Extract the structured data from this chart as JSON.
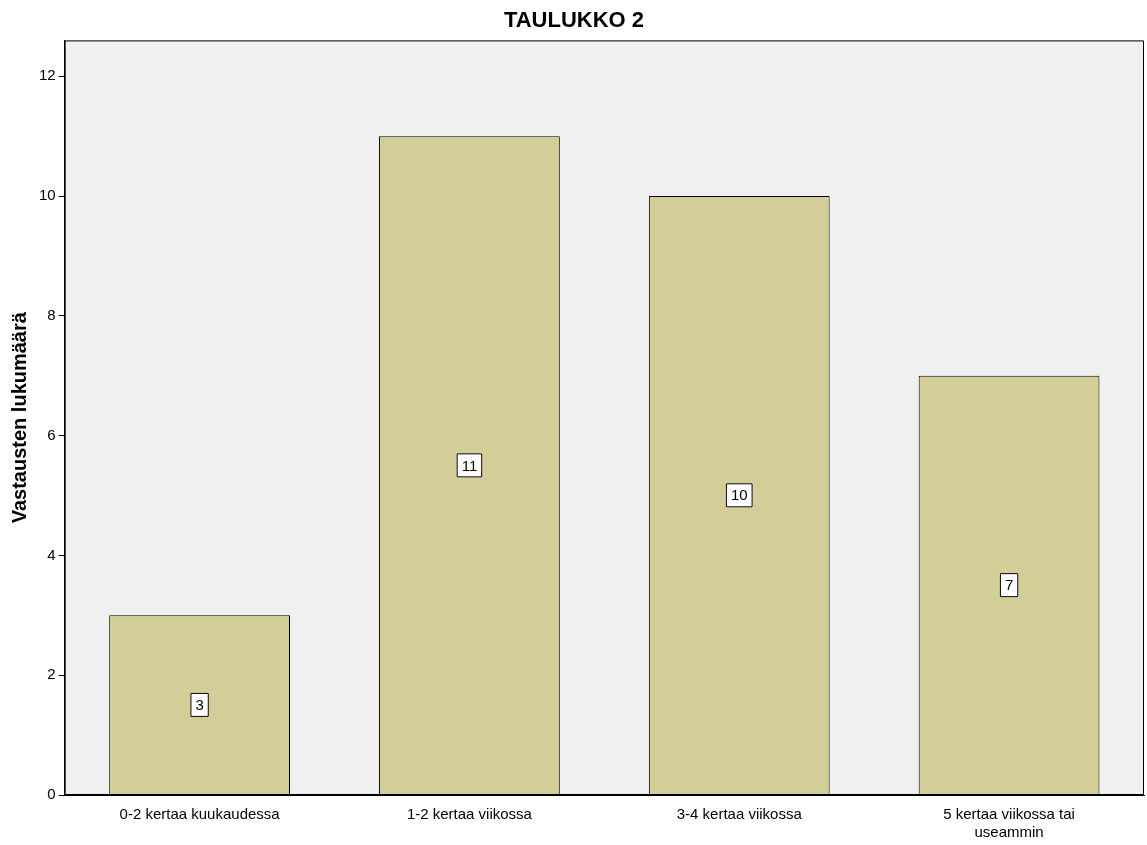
{
  "chart_data": {
    "type": "bar",
    "title": "TAULUKKO 2",
    "ylabel": "Vastausten lukumäärä",
    "categories": [
      "0-2 kertaa kuukaudessa",
      "1-2 kertaa viikossa",
      "3-4 kertaa viikossa",
      "5 kertaa viikossa tai useammin"
    ],
    "values": [
      3,
      11,
      10,
      7
    ],
    "color": "#d3ce97",
    "ylim": [
      0,
      12.6
    ],
    "yticks": [
      0,
      2,
      4,
      6,
      8,
      10,
      12
    ],
    "grid": false,
    "legend": false,
    "data_labels": true
  }
}
